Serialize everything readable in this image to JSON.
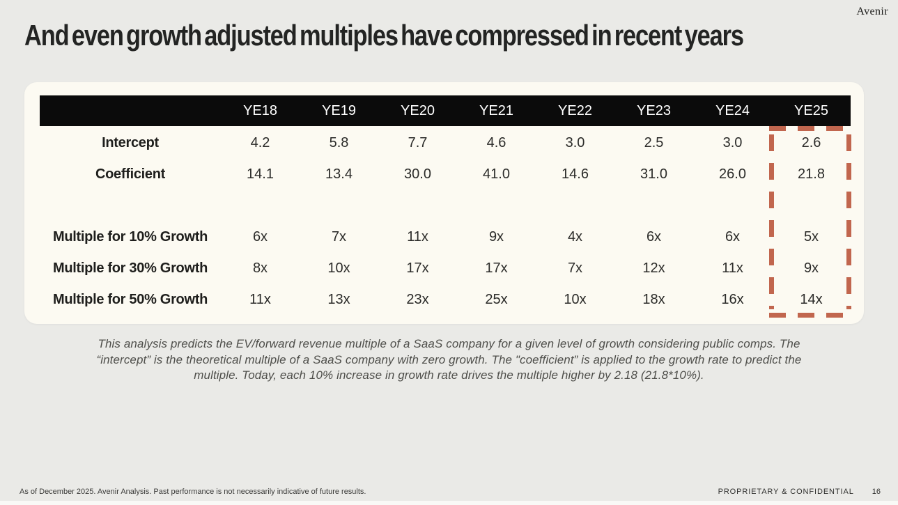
{
  "brand": {
    "logo": "Avenir"
  },
  "title": "And even growth adjusted multiples have compressed in recent years",
  "table": {
    "columns": [
      "YE18",
      "YE19",
      "YE20",
      "YE21",
      "YE22",
      "YE23",
      "YE24",
      "YE25"
    ],
    "highlighted_column": "YE25",
    "highlight_color": "#C1664E",
    "groups": [
      {
        "rows": [
          {
            "label": "Intercept",
            "values": [
              "4.2",
              "5.8",
              "7.7",
              "4.6",
              "3.0",
              "2.5",
              "3.0",
              "2.6"
            ]
          },
          {
            "label": "Coefficient",
            "values": [
              "14.1",
              "13.4",
              "30.0",
              "41.0",
              "14.6",
              "31.0",
              "26.0",
              "21.8"
            ]
          }
        ]
      },
      {
        "rows": [
          {
            "label": "Multiple for 10% Growth",
            "values": [
              "6x",
              "7x",
              "11x",
              "9x",
              "4x",
              "6x",
              "6x",
              "5x"
            ]
          },
          {
            "label": "Multiple for 30% Growth",
            "values": [
              "8x",
              "10x",
              "17x",
              "17x",
              "7x",
              "12x",
              "11x",
              "9x"
            ]
          },
          {
            "label": "Multiple for 50% Growth",
            "values": [
              "11x",
              "13x",
              "23x",
              "25x",
              "10x",
              "18x",
              "16x",
              "14x"
            ]
          }
        ]
      }
    ]
  },
  "footnote": {
    "lines": [
      "This analysis predicts the EV/forward revenue multiple of a SaaS company for a given level of growth considering public comps. The",
      "“intercept” is the theoretical multiple of a SaaS company with zero growth. The \"coefficient” is applied to the growth rate to predict the",
      "multiple. Today, each 10% increase in growth rate drives the multiple higher by 2.18 (21.8*10%)."
    ]
  },
  "footer": {
    "left": "As of December 2025. Avenir Analysis. Past performance is not necessarily indicative of future results.",
    "right": "PROPRIETARY & CONFIDENTIAL",
    "page": "16"
  },
  "colors": {
    "page_bg": "#EAEAE7",
    "card_bg": "#FCFAF2",
    "header_bg": "#0B0B0B",
    "header_text": "#FFFFFF",
    "highlight_dash": "#C1664E",
    "title_text": "#232423",
    "footnote_text": "#4E4E4A"
  }
}
